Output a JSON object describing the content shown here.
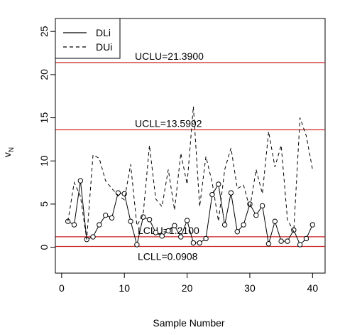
{
  "chart_data": {
    "type": "line",
    "xlabel": "Sample Number",
    "ylabel": "v",
    "ylabel_subscript": "N",
    "xlim": [
      -1,
      42
    ],
    "ylim": [
      -3,
      26.5
    ],
    "x_ticks": [
      0,
      10,
      20,
      30,
      40
    ],
    "y_ticks": [
      0,
      5,
      10,
      15,
      20,
      25
    ],
    "legend": {
      "position": "top-left",
      "entries": [
        {
          "label": "DLi",
          "line_style": "solid"
        },
        {
          "label": "DUi",
          "line_style": "dashed"
        }
      ]
    },
    "control_limits": [
      {
        "label": "UCLU=21.3900",
        "value": 21.39,
        "color": "#cc2222"
      },
      {
        "label": "UCLL=13.5992",
        "value": 13.5992,
        "color": "#cc2222"
      },
      {
        "label": "LCLU=1.2100",
        "value": 1.21,
        "color": "#cc2222"
      },
      {
        "label": "LCLL=0.0908",
        "value": 0.0908,
        "color": "#cc2222"
      }
    ],
    "series": [
      {
        "name": "DLi",
        "line_style": "solid",
        "marker": "open-circle",
        "x": [
          1,
          2,
          3,
          4,
          5,
          6,
          7,
          8,
          9,
          10,
          11,
          12,
          13,
          14,
          15,
          16,
          17,
          18,
          19,
          20,
          21,
          22,
          23,
          24,
          25,
          26,
          27,
          28,
          29,
          30,
          31,
          32,
          33,
          34,
          35,
          36,
          37,
          38,
          39,
          40
        ],
        "values": [
          3.0,
          2.6,
          7.7,
          0.9,
          1.2,
          2.6,
          3.7,
          3.4,
          6.3,
          6.2,
          3.0,
          0.3,
          3.5,
          3.2,
          1.7,
          1.3,
          1.9,
          2.5,
          1.2,
          3.1,
          0.5,
          0.5,
          1.0,
          6.1,
          7.3,
          2.6,
          6.3,
          1.8,
          2.6,
          5.0,
          3.7,
          4.8,
          0.4,
          3.0,
          0.7,
          0.7,
          2.0,
          0.3,
          1.0,
          2.6
        ]
      },
      {
        "name": "DUi",
        "line_style": "dashed",
        "x": [
          1,
          2,
          3,
          4,
          5,
          6,
          7,
          8,
          9,
          10,
          11,
          12,
          13,
          14,
          15,
          16,
          17,
          18,
          19,
          20,
          21,
          22,
          23,
          24,
          25,
          26,
          27,
          28,
          29,
          30,
          31,
          32,
          33,
          34,
          35,
          36,
          37,
          38,
          39,
          40
        ],
        "values": [
          3.0,
          7.5,
          5.9,
          0.9,
          10.7,
          10.3,
          7.7,
          6.8,
          6.0,
          5.5,
          9.6,
          2.5,
          3.8,
          11.8,
          5.6,
          4.7,
          9.0,
          4.3,
          10.9,
          7.3,
          16.3,
          4.7,
          10.5,
          7.5,
          3.0,
          9.0,
          11.5,
          6.8,
          7.2,
          4.5,
          9.0,
          6.2,
          13.4,
          9.3,
          11.8,
          3.2,
          1.8,
          15.0,
          12.9,
          9.0
        ]
      }
    ]
  }
}
